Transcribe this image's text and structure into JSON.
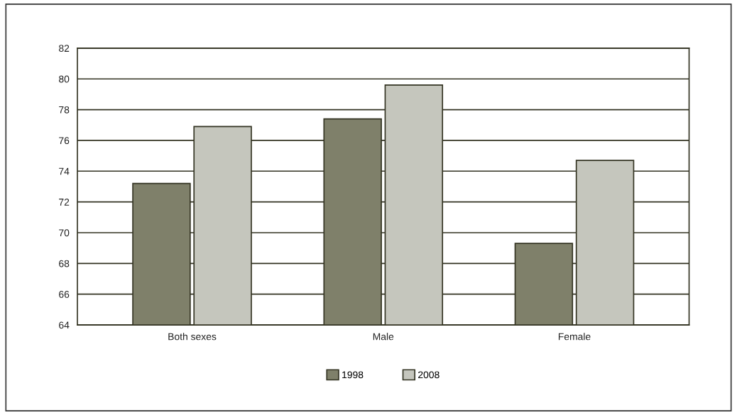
{
  "chart_data": {
    "type": "bar",
    "categories": [
      "Both sexes",
      "Male",
      "Female"
    ],
    "series": [
      {
        "name": "1998",
        "color": "#7f806a",
        "values": [
          73.2,
          77.4,
          69.3
        ]
      },
      {
        "name": "2008",
        "color": "#c5c6bd",
        "values": [
          76.9,
          79.6,
          74.7
        ]
      }
    ],
    "ylim": [
      64,
      82
    ],
    "yticks": [
      64,
      66,
      68,
      70,
      72,
      74,
      76,
      78,
      80,
      82
    ],
    "grid": "y",
    "legend": "bottom"
  }
}
